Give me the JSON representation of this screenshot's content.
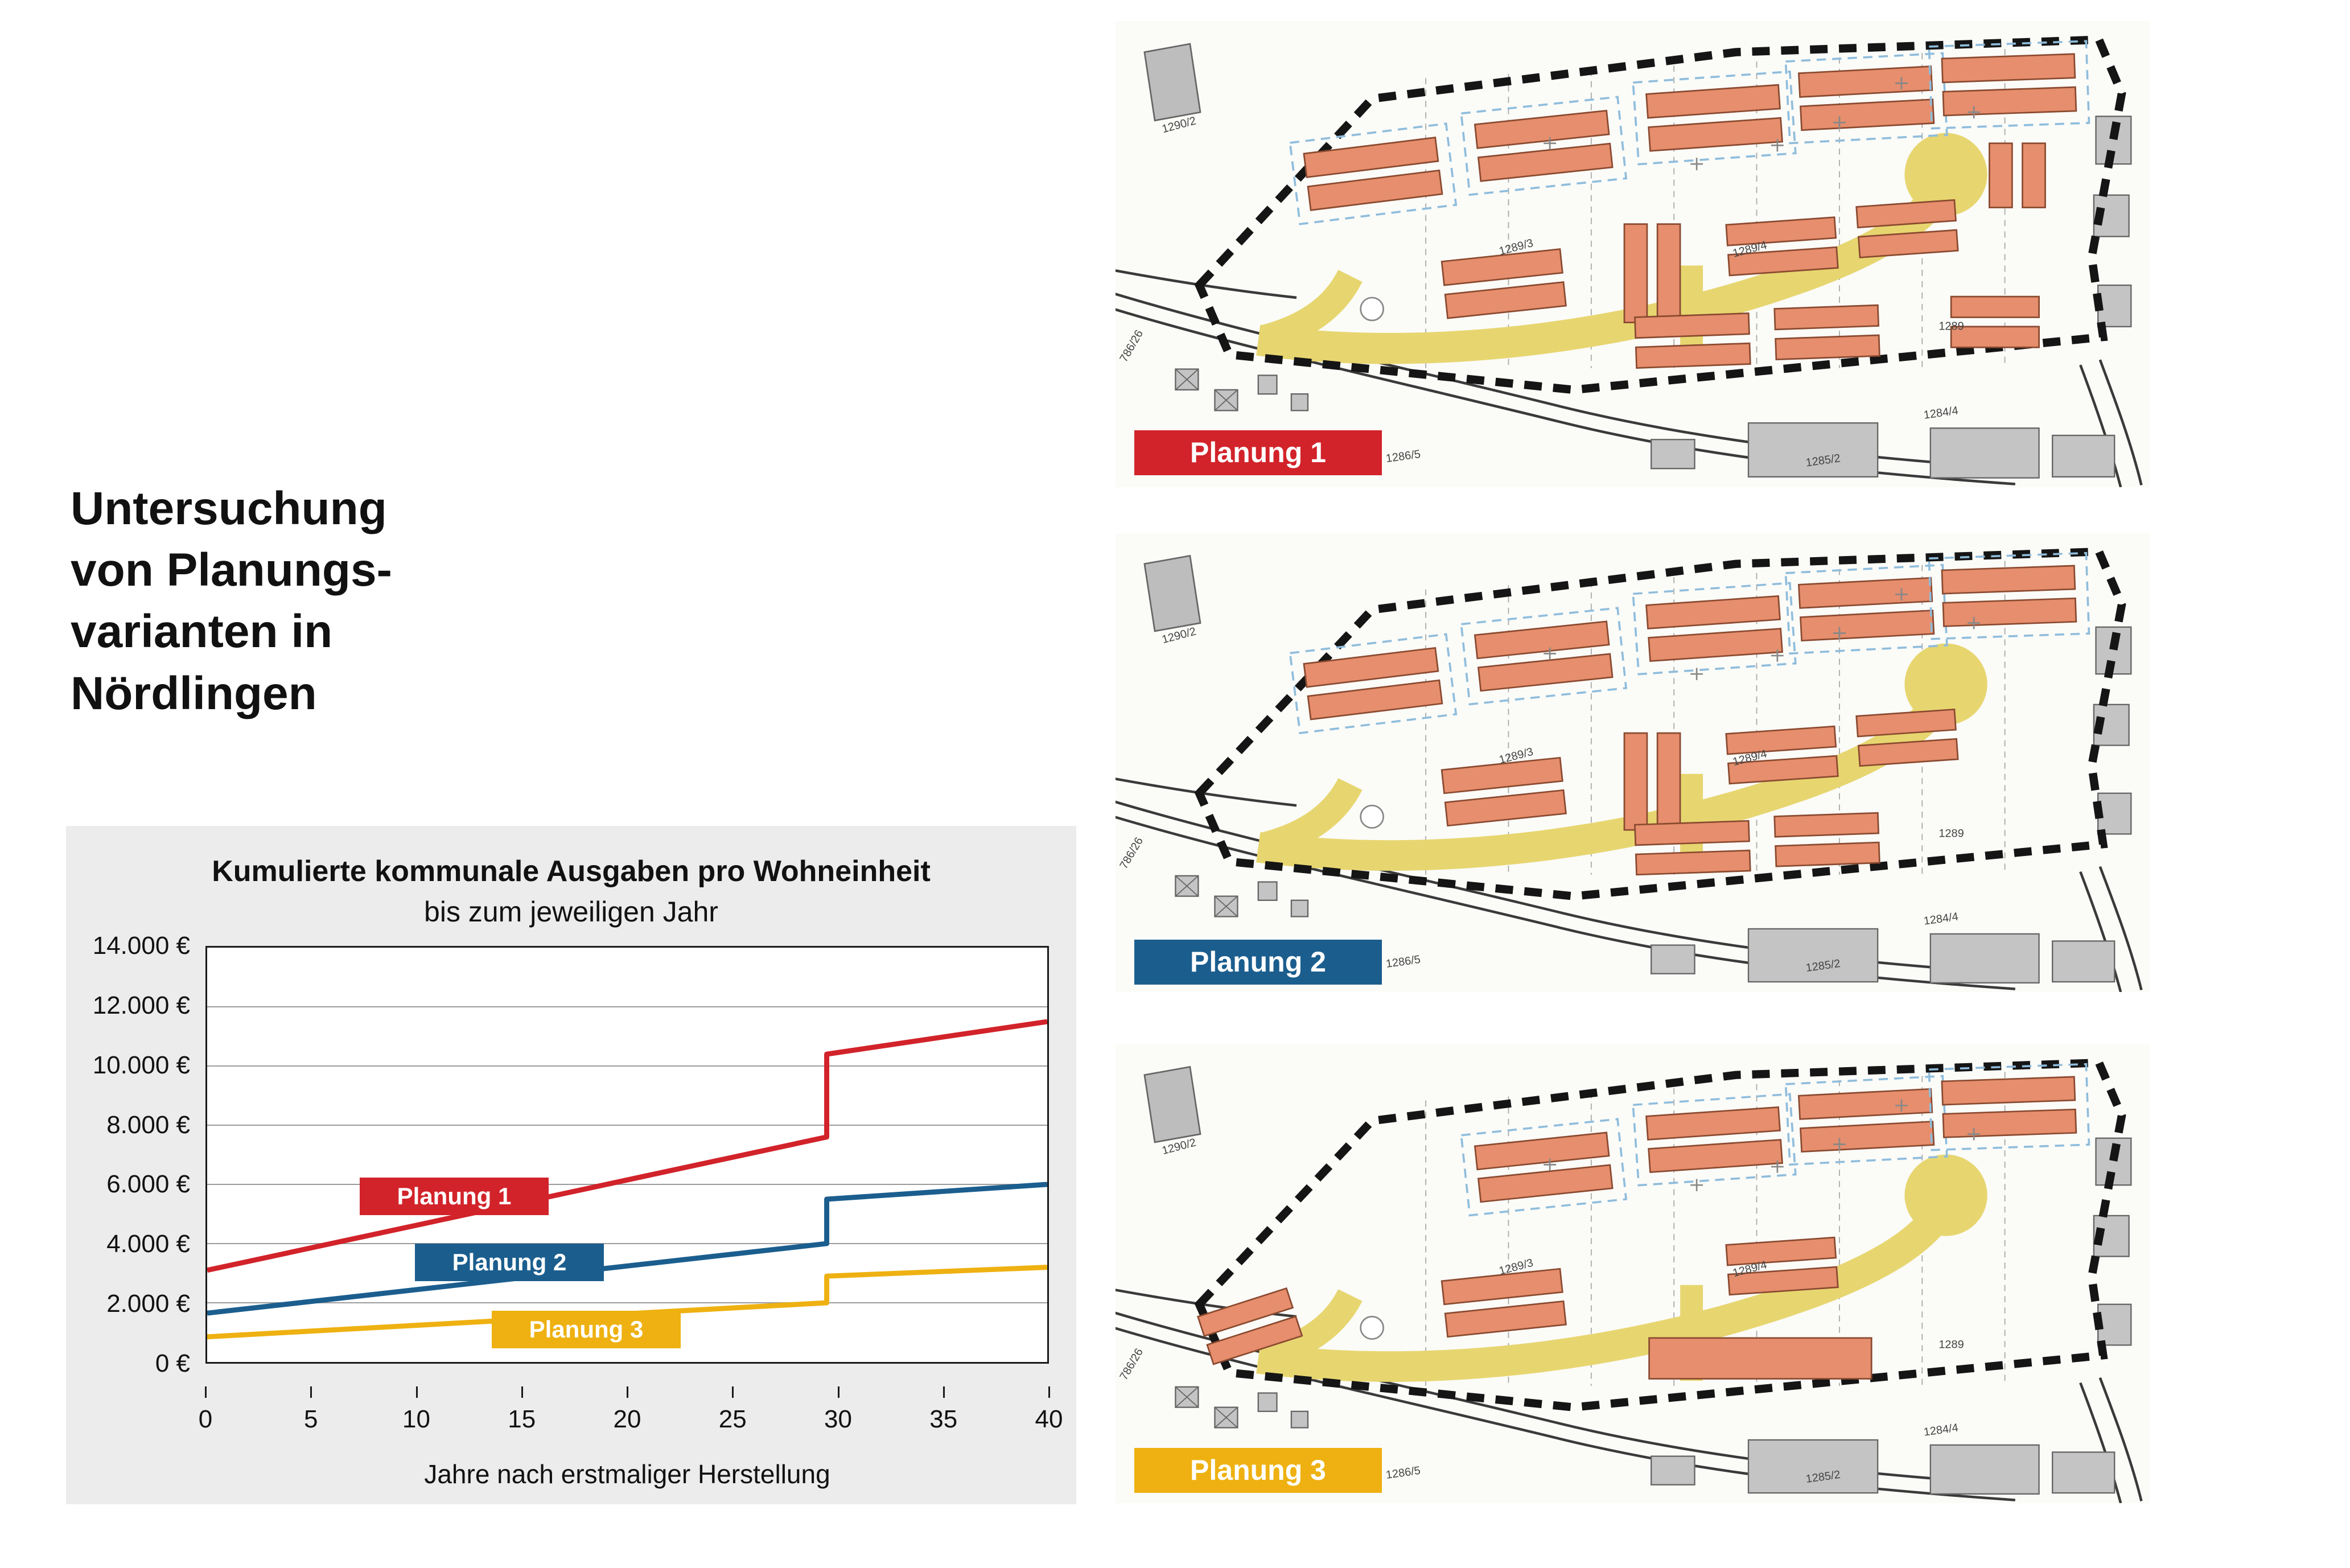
{
  "title": {
    "lines": [
      "Untersuchung",
      "von Planungs-",
      "varianten in",
      "Nördlingen"
    ]
  },
  "chart_data": {
    "type": "line",
    "title": "Kumulierte kommunale Ausgaben pro Wohneinheit",
    "subtitle": "bis zum jeweiligen Jahr",
    "xlabel": "Jahre nach erstmaliger Herstellung",
    "xlim": [
      0,
      40
    ],
    "ylim": [
      0,
      14000
    ],
    "xticks": [
      0,
      5,
      10,
      15,
      20,
      25,
      30,
      35,
      40
    ],
    "yticks": [
      0,
      2000,
      4000,
      6000,
      8000,
      10000,
      12000,
      14000
    ],
    "ytick_labels": [
      "0 €",
      "2.000 €",
      "4.000 €",
      "6.000 €",
      "8.000 €",
      "10.000 €",
      "12.000 €",
      "14.000 €"
    ],
    "grid": true,
    "legend": "inline badges on lines",
    "series": [
      {
        "name": "Planung 1",
        "color": "#d2232a",
        "points": [
          [
            0,
            3100
          ],
          [
            29.5,
            7600
          ],
          [
            29.5,
            10400
          ],
          [
            40,
            11500
          ]
        ]
      },
      {
        "name": "Planung 2",
        "color": "#1b5e8e",
        "points": [
          [
            0,
            1650
          ],
          [
            29.5,
            4000
          ],
          [
            29.5,
            5500
          ],
          [
            40,
            6000
          ]
        ]
      },
      {
        "name": "Planung 3",
        "color": "#eeb111",
        "points": [
          [
            0,
            850
          ],
          [
            29.5,
            2000
          ],
          [
            29.5,
            2900
          ],
          [
            40,
            3200
          ]
        ]
      }
    ]
  },
  "maps": {
    "labels": [
      "Planung 1",
      "Planung 2",
      "Planung 3"
    ],
    "badge_colors": [
      "#d2232a",
      "#1b5e8e",
      "#eeb111"
    ],
    "parcel_labels": [
      "1290/2",
      "1289/3",
      "1289/4",
      "1289",
      "1284/4",
      "1285/2",
      "1286/5",
      "786/26"
    ]
  }
}
